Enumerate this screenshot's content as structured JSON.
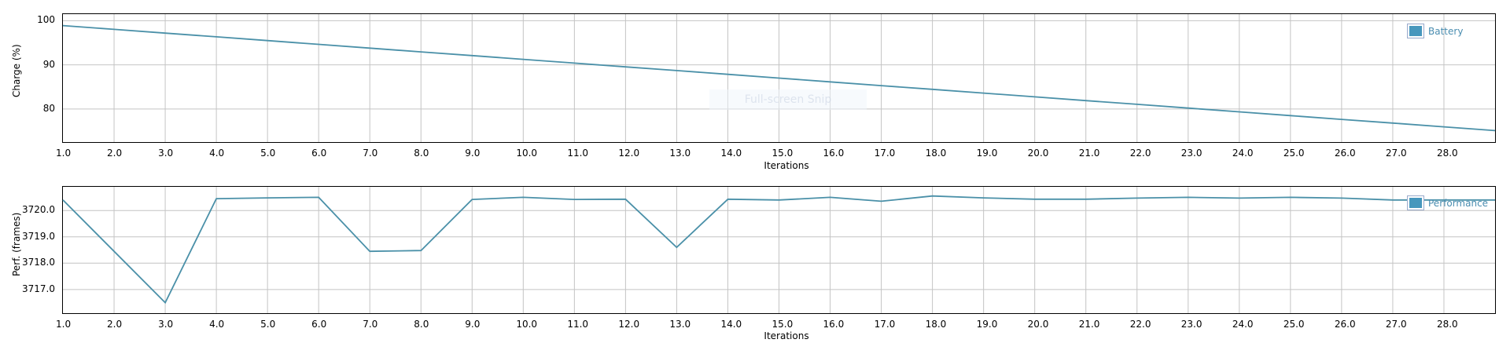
{
  "chart_data": [
    {
      "type": "line",
      "title": "",
      "xlabel": "Iterations",
      "ylabel": "Charge (%)",
      "xlim": [
        1.0,
        29.0
      ],
      "ylim": [
        72.5,
        101.5
      ],
      "grid": true,
      "legend_position": "top-right",
      "x_ticks": [
        "1.0",
        "2.0",
        "3.0",
        "4.0",
        "5.0",
        "6.0",
        "7.0",
        "8.0",
        "9.0",
        "10.0",
        "11.0",
        "12.0",
        "13.0",
        "14.0",
        "15.0",
        "16.0",
        "17.0",
        "18.0",
        "19.0",
        "20.0",
        "21.0",
        "22.0",
        "23.0",
        "24.0",
        "25.0",
        "26.0",
        "27.0",
        "28.0"
      ],
      "y_ticks": [
        "100",
        "90",
        "80"
      ],
      "series": [
        {
          "name": "Battery",
          "color": "#4a90a8",
          "x": [
            1,
            2,
            3,
            4,
            5,
            6,
            7,
            8,
            9,
            10,
            11,
            12,
            13,
            14,
            15,
            16,
            17,
            18,
            19,
            20,
            21,
            22,
            23,
            24,
            25,
            26,
            27,
            28,
            29
          ],
          "values": [
            98.9,
            98.05,
            97.2,
            96.35,
            95.5,
            94.65,
            93.8,
            92.95,
            92.1,
            91.25,
            90.4,
            89.55,
            88.7,
            87.85,
            87.0,
            86.15,
            85.3,
            84.45,
            83.6,
            82.75,
            81.9,
            81.05,
            80.2,
            79.35,
            78.5,
            77.65,
            76.8,
            75.95,
            75.1
          ]
        }
      ]
    },
    {
      "type": "line",
      "title": "",
      "xlabel": "Iterations",
      "ylabel": "Perf. (frames)",
      "xlim": [
        1.0,
        29.0
      ],
      "ylim": [
        3716.1,
        3720.9
      ],
      "grid": true,
      "legend_position": "top-right",
      "x_ticks": [
        "1.0",
        "2.0",
        "3.0",
        "4.0",
        "5.0",
        "6.0",
        "7.0",
        "8.0",
        "9.0",
        "10.0",
        "11.0",
        "12.0",
        "13.0",
        "14.0",
        "15.0",
        "16.0",
        "17.0",
        "18.0",
        "19.0",
        "20.0",
        "21.0",
        "22.0",
        "23.0",
        "24.0",
        "25.0",
        "26.0",
        "27.0",
        "28.0"
      ],
      "y_ticks": [
        "3720.0",
        "3719.0",
        "3718.0",
        "3717.0"
      ],
      "series": [
        {
          "name": "Performance",
          "color": "#4a90a8",
          "x": [
            1,
            3,
            4,
            5,
            6,
            7,
            8,
            9,
            10,
            11,
            12,
            13,
            14,
            15,
            16,
            17,
            18,
            19,
            20,
            21,
            22,
            23,
            24,
            25,
            26,
            27,
            28,
            29
          ],
          "values": [
            3720.4,
            3716.5,
            3720.45,
            3720.48,
            3720.5,
            3718.45,
            3718.48,
            3720.42,
            3720.5,
            3720.42,
            3720.43,
            3718.6,
            3720.43,
            3720.4,
            3720.5,
            3720.35,
            3720.55,
            3720.48,
            3720.43,
            3720.43,
            3720.47,
            3720.5,
            3720.47,
            3720.5,
            3720.47,
            3720.4,
            3720.4,
            3720.4
          ]
        }
      ]
    }
  ],
  "overlay": {
    "snip_text": "Full-screen Snip"
  }
}
